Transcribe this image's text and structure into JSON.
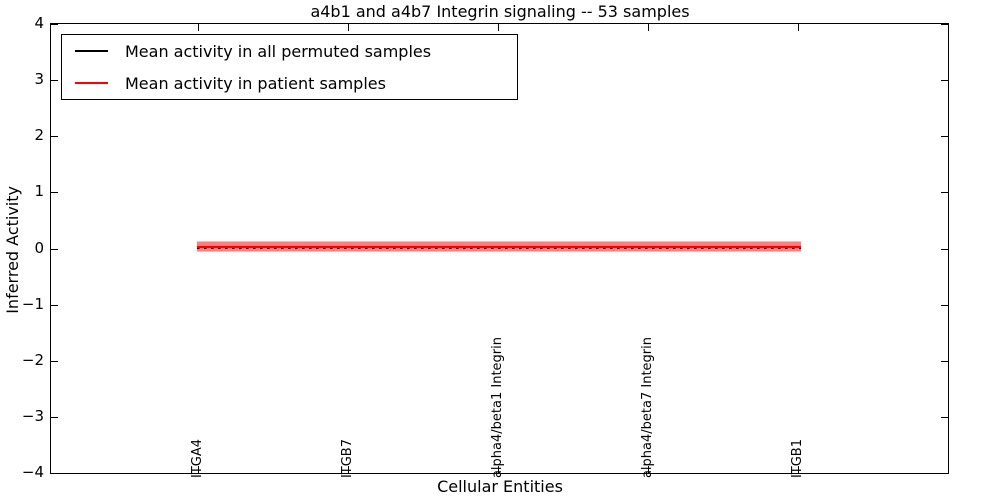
{
  "figure": {
    "title": "a4b1 and a4b7 Integrin signaling -- 53 samples",
    "xlabel": "Cellular Entities",
    "ylabel": "Inferred Activity"
  },
  "legend": {
    "items": [
      {
        "label": "Mean activity in all permuted samples",
        "color": "#000000"
      },
      {
        "label": "Mean activity in patient samples",
        "color": "#ff0000"
      }
    ]
  },
  "chart_data": {
    "type": "line",
    "title": "a4b1 and a4b7 Integrin signaling -- 53 samples",
    "xlabel": "Cellular Entities",
    "ylabel": "Inferred Activity",
    "ylim": [
      -4,
      4
    ],
    "yticks": [
      4,
      3,
      2,
      1,
      0,
      -1,
      -2,
      -3,
      -4
    ],
    "categories": [
      "ITGA4",
      "ITGB7",
      "alpha4/beta1 Integrin",
      "alpha4/beta7 Integrin",
      "ITGB1"
    ],
    "series": [
      {
        "name": "Mean activity in all permuted samples",
        "color": "#000000",
        "style": "dotted",
        "values": [
          0.01,
          0.01,
          0.01,
          0.01,
          0.01
        ]
      },
      {
        "name": "Mean activity in patient samples",
        "color": "#ff0000",
        "style": "solid",
        "values": [
          0.03,
          0.03,
          0.03,
          0.03,
          0.03
        ]
      }
    ],
    "bands": [
      {
        "name": "outer-confidence-band",
        "low": -0.07,
        "high": 0.14,
        "color": "rgba(255,0,0,0.28)"
      },
      {
        "name": "inner-confidence-band",
        "low": -0.04,
        "high": 0.11,
        "color": "rgba(255,0,0,0.32)"
      }
    ],
    "legend_position": "upper left",
    "grid": false
  }
}
